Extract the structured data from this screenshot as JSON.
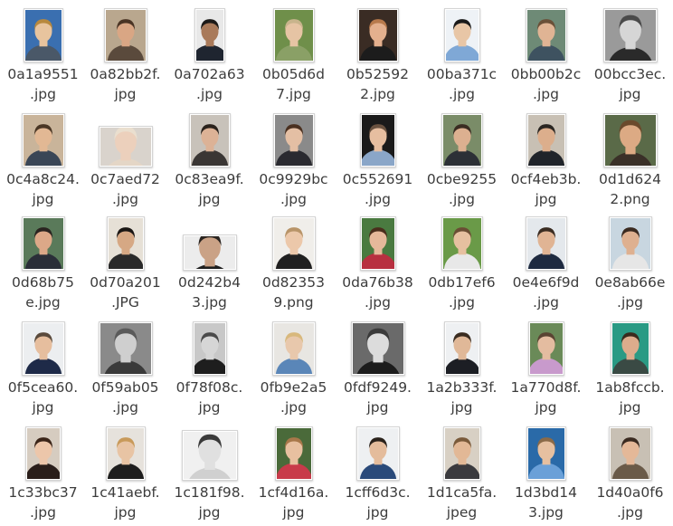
{
  "files": [
    {
      "line1": "0a1a9551",
      "line2": ".jpg",
      "bg": "#3a6fb0",
      "skin": "#e8c49e",
      "hair": "#b8893e",
      "shirt": "#4a5868",
      "gray": false
    },
    {
      "line1": "0a82bb2f.",
      "line2": "jpg",
      "bg": "#b9a78e",
      "skin": "#d9a684",
      "hair": "#4a3424",
      "shirt": "#5a4a3c",
      "gray": false
    },
    {
      "line1": "0a702a63",
      "line2": ".jpg",
      "bg": "#e8e8e8",
      "skin": "#a97a5a",
      "hair": "#1c1a18",
      "shirt": "#1f2530",
      "gray": false
    },
    {
      "line1": "0b05d6d",
      "line2": "7.jpg",
      "bg": "#6f8f4a",
      "skin": "#e6c4a4",
      "hair": "#c8b48c",
      "shirt": "#8aa066",
      "gray": false
    },
    {
      "line1": "0b52592",
      "line2": "2.jpg",
      "bg": "#3a2c24",
      "skin": "#e4b08e",
      "hair": "#b87a4c",
      "shirt": "#1c1c1c",
      "gray": false
    },
    {
      "line1": "00ba371c",
      "line2": ".jpg",
      "bg": "#eef2f6",
      "skin": "#e8c6a6",
      "hair": "#1a1a1a",
      "shirt": "#7fa8d6",
      "gray": false
    },
    {
      "line1": "0bb00b2c",
      "line2": ".jpg",
      "bg": "#6e8a76",
      "skin": "#e0b494",
      "hair": "#6a5038",
      "shirt": "#3e5260",
      "gray": false
    },
    {
      "line1": "00bcc3ec.",
      "line2": "jpg",
      "bg": "#9a9a9a",
      "skin": "#d6d6d6",
      "hair": "#4a4a4a",
      "shirt": "#2a2a2a",
      "gray": true
    },
    {
      "line1": "0c4a8c24.",
      "line2": "jpg",
      "bg": "#c9b49a",
      "skin": "#e2b894",
      "hair": "#4a3624",
      "shirt": "#3a4656",
      "gray": false
    },
    {
      "line1": "0c7aed72",
      "line2": ".jpg",
      "bg": "#d9d3cc",
      "skin": "#ecd0bc",
      "hair": "#eadfcf",
      "shirt": "#e4d6c6",
      "gray": false
    },
    {
      "line1": "0c83ea9f.",
      "line2": "jpg",
      "bg": "#c8c2ba",
      "skin": "#dcb296",
      "hair": "#2a221c",
      "shirt": "#3a3634",
      "gray": false
    },
    {
      "line1": "0c9929bc",
      "line2": ".jpg",
      "bg": "#8a8a8a",
      "skin": "#e4bfa4",
      "hair": "#4a3020",
      "shirt": "#2a2a30",
      "gray": false
    },
    {
      "line1": "0c552691",
      "line2": ".jpg",
      "bg": "#1a1a1a",
      "skin": "#e6bea0",
      "hair": "#6a5240",
      "shirt": "#8aa6c8",
      "gray": false
    },
    {
      "line1": "0cbe9255",
      "line2": ".jpg",
      "bg": "#7a8c68",
      "skin": "#dcb090",
      "hair": "#3a2c22",
      "shirt": "#2c3036",
      "gray": false
    },
    {
      "line1": "0cf4eb3b.",
      "line2": "jpg",
      "bg": "#c8c0b4",
      "skin": "#dcae8c",
      "hair": "#2a2622",
      "shirt": "#20242a",
      "gray": false
    },
    {
      "line1": "0d1d624",
      "line2": "2.png",
      "bg": "#5a6a48",
      "skin": "#dcaa84",
      "hair": "#6a4a2c",
      "shirt": "#3a3028",
      "gray": false
    },
    {
      "line1": "0d68b75",
      "line2": "e.jpg",
      "bg": "#5a7a5a",
      "skin": "#dca888",
      "hair": "#2a2420",
      "shirt": "#2a2e38",
      "gray": false
    },
    {
      "line1": "0d70a201",
      "line2": ".JPG",
      "bg": "#e6e0d6",
      "skin": "#d6a884",
      "hair": "#1a1614",
      "shirt": "#2a2a2a",
      "gray": false
    },
    {
      "line1": "0d242b4",
      "line2": "3.jpg",
      "bg": "#ececec",
      "skin": "#caa286",
      "hair": "#2a2420",
      "shirt": "#1e1e1e",
      "gray": false
    },
    {
      "line1": "0d82353",
      "line2": "9.png",
      "bg": "#f0eeea",
      "skin": "#ecc8aa",
      "hair": "#b89468",
      "shirt": "#202020",
      "gray": false
    },
    {
      "line1": "0da76b38",
      "line2": ".jpg",
      "bg": "#4a7a40",
      "skin": "#e6b89a",
      "hair": "#4a2e1c",
      "shirt": "#b83040",
      "gray": false
    },
    {
      "line1": "0db17ef6",
      "line2": ".jpg",
      "bg": "#6a9a48",
      "skin": "#e6c0a0",
      "hair": "#6a4e34",
      "shirt": "#e8e8e8",
      "gray": false
    },
    {
      "line1": "0e4e6f9d",
      "line2": ".jpg",
      "bg": "#e4e8ec",
      "skin": "#e0b494",
      "hair": "#3a2c22",
      "shirt": "#1e2a40",
      "gray": false
    },
    {
      "line1": "0e8ab66e",
      "line2": ".jpg",
      "bg": "#c8d6e0",
      "skin": "#deb090",
      "hair": "#3a2a20",
      "shirt": "#e6e6e6",
      "gray": false
    },
    {
      "line1": "0f5cea60.",
      "line2": "jpg",
      "bg": "#eceef0",
      "skin": "#e6be9e",
      "hair": "#5a4a3c",
      "shirt": "#1e2a48",
      "gray": false
    },
    {
      "line1": "0f59ab05",
      "line2": ".jpg",
      "bg": "#8a8a8a",
      "skin": "#cfcfcf",
      "hair": "#5a5a5a",
      "shirt": "#3a3a3a",
      "gray": true
    },
    {
      "line1": "0f78f08c.",
      "line2": "jpg",
      "bg": "#c8c8c8",
      "skin": "#d6d6d6",
      "hair": "#4a4a4a",
      "shirt": "#1e1e1e",
      "gray": true
    },
    {
      "line1": "0fb9e2a5",
      "line2": ".jpg",
      "bg": "#e8e6e2",
      "skin": "#e8c8ac",
      "hair": "#d8b87c",
      "shirt": "#5a86b8",
      "gray": false
    },
    {
      "line1": "0fdf9249.",
      "line2": "jpg",
      "bg": "#6a6a6a",
      "skin": "#dcdcdc",
      "hair": "#3a3a3a",
      "shirt": "#1c1c1c",
      "gray": true
    },
    {
      "line1": "1a2b333f.",
      "line2": "jpg",
      "bg": "#eef0f2",
      "skin": "#e0b898",
      "hair": "#3a2c20",
      "shirt": "#1c1e24",
      "gray": false
    },
    {
      "line1": "1a770d8f.",
      "line2": "jpg",
      "bg": "#6a8a58",
      "skin": "#e4bca0",
      "hair": "#5a4432",
      "shirt": "#c89acc",
      "gray": false
    },
    {
      "line1": "1ab8fccb.",
      "line2": "jpg",
      "bg": "#2a9a84",
      "skin": "#dcac8c",
      "hair": "#3a2a1c",
      "shirt": "#3a4a44",
      "gray": false
    },
    {
      "line1": "1c33bc37",
      "line2": ".jpg",
      "bg": "#d6ccc0",
      "skin": "#ecc6aa",
      "hair": "#3a2418",
      "shirt": "#2a1e1a",
      "gray": false
    },
    {
      "line1": "1c41aebf.",
      "line2": "jpg",
      "bg": "#e6e2dc",
      "skin": "#e8c4a4",
      "hair": "#c89a5a",
      "shirt": "#1e1e1e",
      "gray": false
    },
    {
      "line1": "1c181f98.",
      "line2": "jpg",
      "bg": "#f0f0f0",
      "skin": "#e0e0e0",
      "hair": "#3a3a3a",
      "shirt": "#d0d0d0",
      "gray": true
    },
    {
      "line1": "1cf4d16a.",
      "line2": "jpg",
      "bg": "#4a6a3a",
      "skin": "#e8c0a0",
      "hair": "#a8784a",
      "shirt": "#c83a4a",
      "gray": false
    },
    {
      "line1": "1cff6d3c.",
      "line2": "jpg",
      "bg": "#eef0f2",
      "skin": "#e4bc9c",
      "hair": "#2a221c",
      "shirt": "#2a4a7a",
      "gray": false
    },
    {
      "line1": "1d1ca5fa.",
      "line2": "jpeg",
      "bg": "#d8d0c4",
      "skin": "#e2b896",
      "hair": "#7a5a3a",
      "shirt": "#3a3a3e",
      "gray": false
    },
    {
      "line1": "1d3bd14",
      "line2": "3.jpg",
      "bg": "#2a6aa8",
      "skin": "#e6c0a0",
      "hair": "#8a6a48",
      "shirt": "#6aa0d8",
      "gray": false
    },
    {
      "line1": "1d40a0f6",
      "line2": ".jpg",
      "bg": "#c8c0b4",
      "skin": "#e4b898",
      "hair": "#3a2a20",
      "shirt": "#6a5a48",
      "gray": false
    }
  ]
}
